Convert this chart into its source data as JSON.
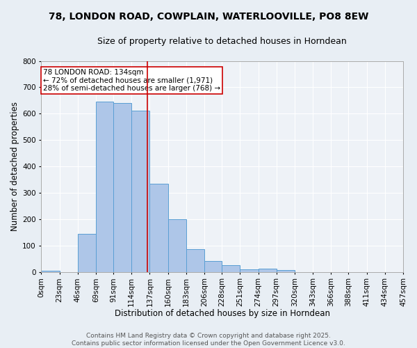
{
  "title_line1": "78, LONDON ROAD, COWPLAIN, WATERLOOVILLE, PO8 8EW",
  "title_line2": "Size of property relative to detached houses in Horndean",
  "xlabel": "Distribution of detached houses by size in Horndean",
  "ylabel": "Number of detached properties",
  "bin_labels": [
    "0sqm",
    "23sqm",
    "46sqm",
    "69sqm",
    "91sqm",
    "114sqm",
    "137sqm",
    "160sqm",
    "183sqm",
    "206sqm",
    "228sqm",
    "251sqm",
    "274sqm",
    "297sqm",
    "320sqm",
    "343sqm",
    "366sqm",
    "388sqm",
    "411sqm",
    "434sqm",
    "457sqm"
  ],
  "bin_edges": [
    0,
    23,
    46,
    69,
    91,
    114,
    137,
    160,
    183,
    206,
    228,
    251,
    274,
    297,
    320,
    343,
    366,
    388,
    411,
    434,
    457
  ],
  "bar_heights": [
    5,
    0,
    145,
    645,
    640,
    610,
    335,
    200,
    85,
    42,
    26,
    10,
    12,
    6,
    0,
    0,
    0,
    0,
    0,
    0,
    5
  ],
  "bar_color": "#aec6e8",
  "bar_edge_color": "#5a9fd4",
  "property_size": 134,
  "vline_color": "#cc0000",
  "annotation_text": "78 LONDON ROAD: 134sqm\n← 72% of detached houses are smaller (1,971)\n28% of semi-detached houses are larger (768) →",
  "annotation_box_color": "#ffffff",
  "annotation_box_edge": "#cc0000",
  "ylim": [
    0,
    800
  ],
  "yticks": [
    0,
    100,
    200,
    300,
    400,
    500,
    600,
    700,
    800
  ],
  "footer_line1": "Contains HM Land Registry data © Crown copyright and database right 2025.",
  "footer_line2": "Contains public sector information licensed under the Open Government Licence v3.0.",
  "bg_color": "#e8eef4",
  "plot_bg_color": "#eef2f7",
  "grid_color": "#ffffff",
  "title_fontsize": 10,
  "subtitle_fontsize": 9,
  "axis_label_fontsize": 8.5,
  "tick_fontsize": 7.5,
  "annotation_fontsize": 7.5,
  "footer_fontsize": 6.5
}
